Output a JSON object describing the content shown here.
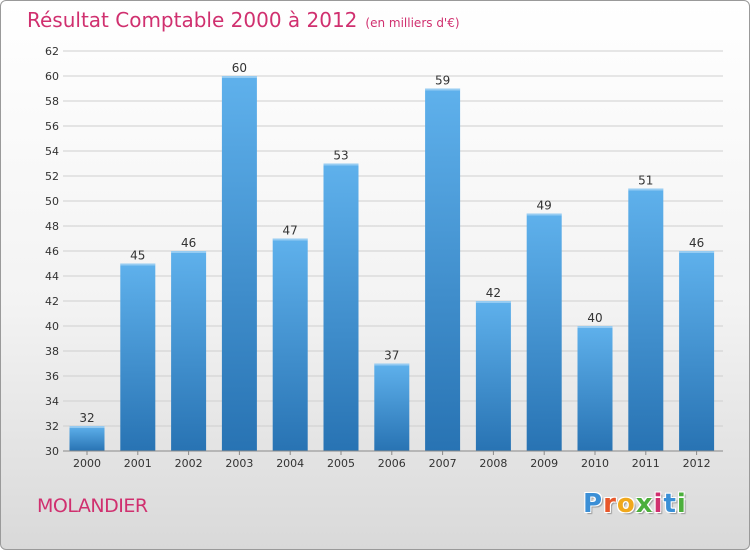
{
  "title": {
    "main": "Résultat Comptable 2000 à 2012",
    "subtitle": "(en milliers d'€)"
  },
  "commune": "MOLANDIER",
  "logo": {
    "letters": [
      "P",
      "r",
      "o",
      "x",
      "i",
      "t",
      "i"
    ],
    "colors": [
      "#3b8fd6",
      "#e8572a",
      "#f0a81c",
      "#4caf3c",
      "#d0306f",
      "#3b8fd6",
      "#4caf3c"
    ]
  },
  "colors": {
    "bar_top": "#5fb1ec",
    "bar_bottom": "#2873b3",
    "title": "#d0306f",
    "grid": "#cfcfcf",
    "axis_text": "#333333"
  },
  "chart_data": {
    "type": "bar",
    "title": "Résultat Comptable 2000 à 2012",
    "subtitle": "(en milliers d'€)",
    "xlabel": "",
    "ylabel": "",
    "categories": [
      "2000",
      "2001",
      "2002",
      "2003",
      "2004",
      "2005",
      "2006",
      "2007",
      "2008",
      "2009",
      "2010",
      "2011",
      "2012"
    ],
    "values": [
      32,
      45,
      46,
      60,
      47,
      53,
      37,
      59,
      42,
      49,
      40,
      51,
      46
    ],
    "ylim": [
      30,
      62
    ],
    "yticks": [
      30,
      32,
      34,
      36,
      38,
      40,
      42,
      44,
      46,
      48,
      50,
      52,
      54,
      56,
      58,
      60,
      62
    ],
    "grid": true
  }
}
